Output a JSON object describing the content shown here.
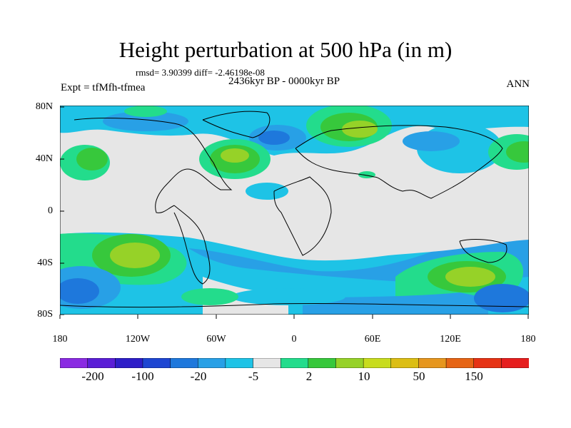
{
  "figure": {
    "title": "Height perturbation at 500 hPa (in m)",
    "stats": "rmsd= 3.90399 diff= -2.46198e-08",
    "experiment": "Expt = tfMfh-tfmea",
    "period": "2436kyr BP - 0000kyr BP",
    "season": "ANN"
  },
  "axes": {
    "lat_labels": [
      "80N",
      "40N",
      "0",
      "40S",
      "80S"
    ],
    "lon_labels": [
      "180",
      "120W",
      "60W",
      "0",
      "60E",
      "120E",
      "180"
    ]
  },
  "colorbar": {
    "labels": [
      "-200",
      "-100",
      "-20",
      "-5",
      "2",
      "10",
      "50",
      "150"
    ],
    "colors": [
      "#8a2be2",
      "#5a1ed6",
      "#2e1ec8",
      "#1e46d2",
      "#1e78dc",
      "#28a0e6",
      "#1ec3e6",
      "#e6e6e6",
      "#23dc8c",
      "#37c83c",
      "#96d228",
      "#c8dc1e",
      "#dcbe14",
      "#e6961e",
      "#e66414",
      "#e63214",
      "#e61e1e"
    ]
  },
  "palette": {
    "background": "#e6e6e6",
    "blue_light": "#1ec3e6",
    "blue_mid": "#28a0e6",
    "blue_dark": "#1e78dc",
    "green_mint": "#23dc8c",
    "green": "#37c83c",
    "yellow_green": "#96d228",
    "coast": "#000000"
  }
}
